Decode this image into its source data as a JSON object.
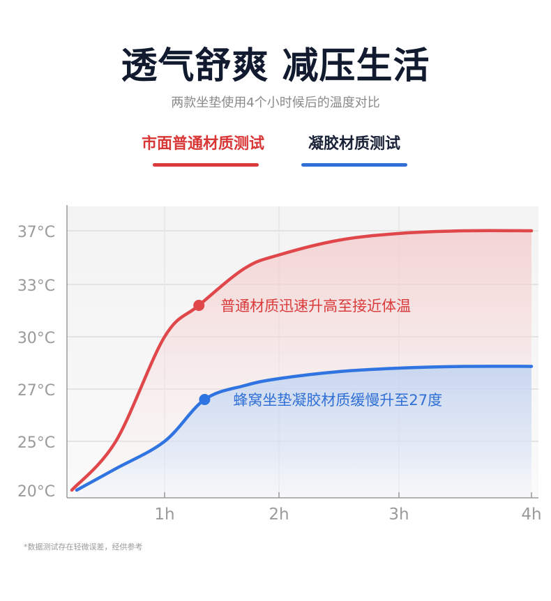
{
  "header": {
    "title": "透气舒爽 减压生活",
    "subtitle": "两款坐垫使用4个小时候后的温度对比"
  },
  "legend": {
    "ordinary": "市面普通材质测试",
    "gel": "凝胶材质测试"
  },
  "chart_data": {
    "type": "line",
    "title": "",
    "xlabel": "",
    "ylabel": "",
    "x_ticks": [
      "1h",
      "2h",
      "3h",
      "4h"
    ],
    "y_ticks": [
      "20°C",
      "25°C",
      "27°C",
      "30°C",
      "33°C",
      "37°C"
    ],
    "xlim": [
      0,
      4
    ],
    "grid": true,
    "series": [
      {
        "name": "市面普通材质测试",
        "color": "#e0474a",
        "x": [
          0.05,
          0.5,
          1.0,
          1.3,
          1.7,
          2.0,
          2.5,
          3.0,
          3.5,
          4.0
        ],
        "y": [
          "20°C",
          "25°C",
          "30°C",
          "31.8°C",
          "34.2°C",
          "35.2°C",
          "36.3°C",
          "36.8°C",
          "37°C",
          "37°C"
        ],
        "annotation": {
          "x": 1.3,
          "text": "普通材质迅速升高至接近体温"
        }
      },
      {
        "name": "凝胶材质测试",
        "color": "#2f74e0",
        "x": [
          0.1,
          0.5,
          1.0,
          1.35,
          1.7,
          2.0,
          2.5,
          3.0,
          3.5,
          4.0
        ],
        "y": [
          "20°C",
          "22.2°C",
          "25°C",
          "26.6°C",
          "27.2°C",
          "27.6°C",
          "28.0°C",
          "28.2°C",
          "28.3°C",
          "28.3°C"
        ],
        "annotation": {
          "x": 1.35,
          "text": "蜂窝坐垫凝胶材质缓慢升至27度"
        }
      }
    ]
  },
  "footnote": "*数据测试存在轻微误差，经供参考"
}
